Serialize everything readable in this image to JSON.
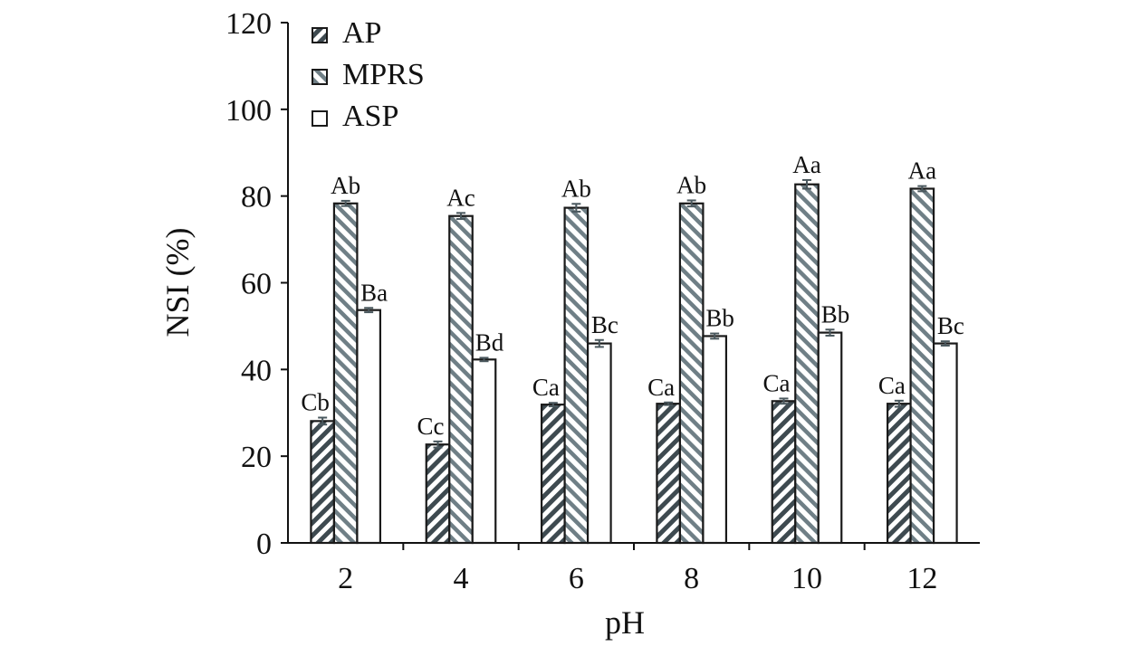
{
  "chart_data": {
    "type": "bar",
    "xlabel": "pH",
    "ylabel": "NSI (%)",
    "ylim": [
      0,
      120
    ],
    "yticks": [
      0,
      20,
      40,
      60,
      80,
      100,
      120
    ],
    "grid": false,
    "legend_placement": "top-left",
    "categories": [
      "2",
      "4",
      "6",
      "8",
      "10",
      "12"
    ],
    "series": [
      {
        "name": "AP",
        "pattern": "forward-diagonal-dark",
        "color": "#3e4a50",
        "values": [
          28.1,
          22.7,
          31.9,
          32.1,
          32.7,
          32.1
        ],
        "errors": [
          0.8,
          0.7,
          0.4,
          0.3,
          0.6,
          0.7
        ],
        "labels": [
          "Cb",
          "Cc",
          "Ca",
          "Ca",
          "Ca",
          "Ca"
        ]
      },
      {
        "name": "MPRS",
        "pattern": "backward-diagonal-light",
        "color": "#6f7f86",
        "values": [
          78.3,
          75.4,
          77.3,
          78.3,
          82.7,
          81.7
        ],
        "errors": [
          0.6,
          0.7,
          0.9,
          0.7,
          1.0,
          0.6
        ],
        "labels": [
          "Ab",
          "Ac",
          "Ab",
          "Ab",
          "Aa",
          "Aa"
        ]
      },
      {
        "name": "ASP",
        "pattern": "solid-white",
        "color": "#ffffff",
        "values": [
          53.7,
          42.3,
          46.0,
          47.7,
          48.5,
          46.0
        ],
        "errors": [
          0.5,
          0.4,
          0.8,
          0.6,
          0.7,
          0.5
        ],
        "labels": [
          "Ba",
          "Bd",
          "Bc",
          "Bb",
          "Bb",
          "Bc"
        ]
      }
    ]
  }
}
